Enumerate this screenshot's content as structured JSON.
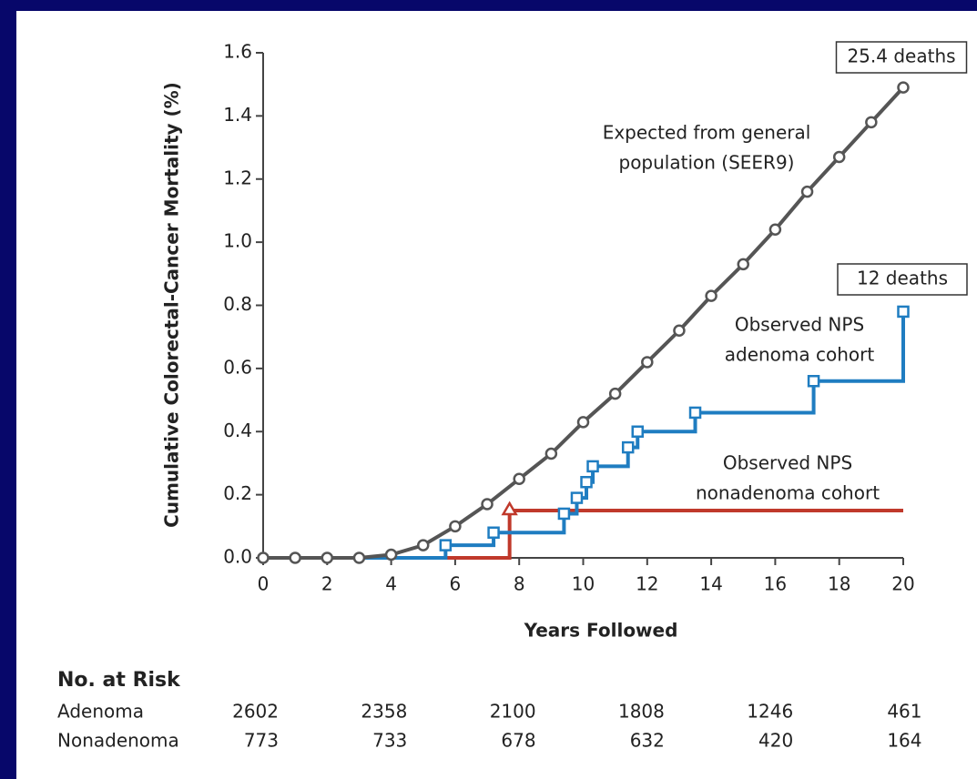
{
  "chart_data": {
    "type": "line",
    "xlabel": "Years Followed",
    "ylabel": "Cumulative Colorectal-Cancer Mortality (%)",
    "xlim": [
      0,
      20
    ],
    "ylim": [
      0,
      1.6
    ],
    "xticks": [
      0,
      2,
      4,
      6,
      8,
      10,
      12,
      14,
      16,
      18,
      20
    ],
    "yticks": [
      {
        "value": 0,
        "label": "0.0"
      },
      0.2,
      0.4,
      0.6,
      0.8,
      {
        "value": 1,
        "label": "1.0"
      },
      1.2,
      1.4,
      1.6
    ],
    "series": [
      {
        "color": "#555555",
        "marker": "circle",
        "step": false,
        "x": [
          0,
          1,
          2,
          3,
          4,
          5,
          6,
          7,
          8,
          9,
          10,
          11,
          12,
          13,
          14,
          15,
          16,
          17,
          18,
          19,
          20
        ],
        "values": [
          0,
          0,
          0,
          0,
          0.01,
          0.04,
          0.1,
          0.17,
          0.25,
          0.33,
          0.43,
          0.52,
          0.62,
          0.72,
          0.83,
          0.93,
          1.04,
          1.16,
          1.27,
          1.38,
          1.49
        ]
      },
      {
        "color": "#1f7dc1",
        "marker": "square",
        "step": true,
        "x": [
          0,
          5.7,
          7.2,
          9.4,
          9.8,
          10.1,
          10.3,
          11.4,
          11.7,
          13.5,
          17.2,
          20
        ],
        "values": [
          0,
          0.04,
          0.08,
          0.14,
          0.19,
          0.24,
          0.29,
          0.35,
          0.4,
          0.46,
          0.56,
          0.78
        ]
      },
      {
        "color": "#c0392b",
        "marker": "triangle",
        "step": true,
        "x": [
          0,
          7.7
        ],
        "values": [
          0,
          0.15
        ]
      }
    ],
    "annotations": [
      {
        "lines": [
          "25.4 deaths"
        ],
        "boxed": true
      },
      {
        "lines": [
          "Expected from general",
          "population (SEER9)"
        ],
        "boxed": false
      },
      {
        "lines": [
          "12 deaths"
        ],
        "boxed": true
      },
      {
        "lines": [
          "Observed NPS",
          "adenoma cohort"
        ],
        "boxed": false
      },
      {
        "lines": [
          "Observed NPS",
          "nonadenoma cohort"
        ],
        "boxed": false
      }
    ],
    "risk_table": {
      "title": "No. at Risk",
      "rows": [
        {
          "label": "Adenoma",
          "values": [
            2602,
            2358,
            2100,
            1808,
            1246,
            461
          ]
        },
        {
          "label": "Nonadenoma",
          "values": [
            773,
            733,
            678,
            632,
            420,
            164
          ]
        }
      ]
    }
  }
}
